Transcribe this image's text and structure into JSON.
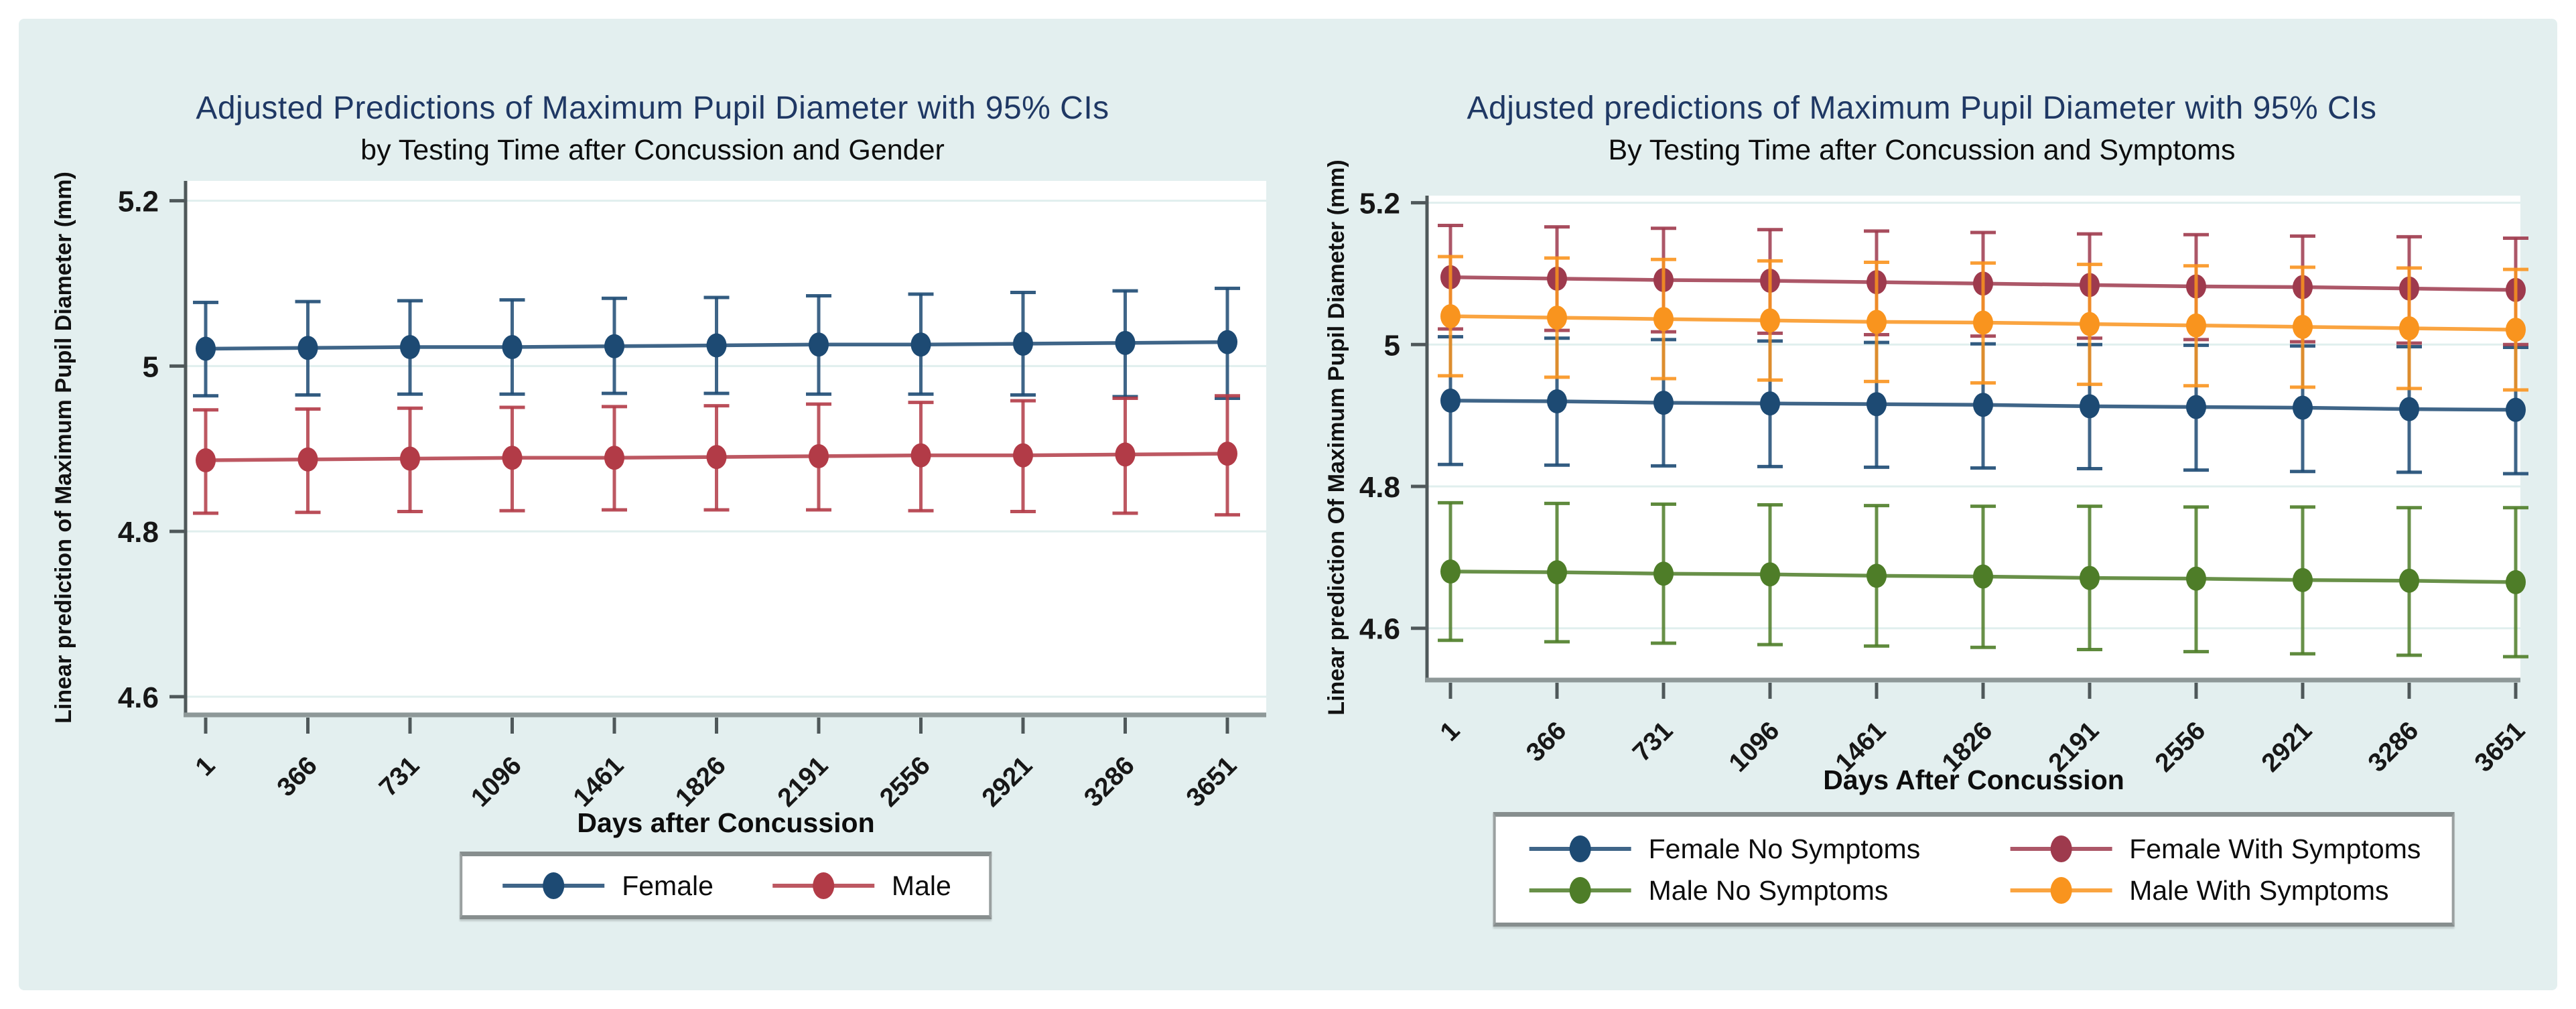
{
  "page": {
    "background": "#ffffff",
    "panel_background": "#e3efef",
    "title_color": "#1f3864",
    "plot_background": "#ffffff",
    "gridline_color": "#e0efee",
    "axis_color": "#4f585a",
    "baseline_color": "#8e9898"
  },
  "chart_data": [
    {
      "type": "line",
      "error_bars": "95% CI",
      "title": "Adjusted Predictions of Maximum Pupil Diameter with 95% CIs",
      "subtitle": "by Testing Time after Concussion and Gender",
      "ylabel": "Linear prediction of Maximum Pupil Diameter (mm)",
      "xlabel": "Days after Concussion",
      "x": [
        1,
        366,
        731,
        1096,
        1461,
        1826,
        2191,
        2556,
        2921,
        3286,
        3651
      ],
      "x_tick_labels": [
        "1",
        "366",
        "731",
        "1096",
        "1461",
        "1826",
        "2191",
        "2556",
        "2921",
        "3286",
        "3651"
      ],
      "y_ticks": [
        5.2,
        5.0,
        4.8,
        4.6
      ],
      "y_tick_labels": [
        "5.2",
        "5",
        "4.8",
        "4.6"
      ],
      "ylim": [
        4.578,
        5.224
      ],
      "grid": true,
      "legend_position": "bottom",
      "series": [
        {
          "name": "Female",
          "color": "#1d4a73",
          "values": [
            5.021,
            5.022,
            5.023,
            5.023,
            5.024,
            5.025,
            5.026,
            5.026,
            5.027,
            5.028,
            5.029
          ],
          "ci_upper": [
            5.077,
            5.078,
            5.079,
            5.08,
            5.082,
            5.083,
            5.085,
            5.087,
            5.089,
            5.091,
            5.094
          ],
          "ci_lower": [
            4.964,
            4.965,
            4.966,
            4.966,
            4.967,
            4.967,
            4.966,
            4.966,
            4.965,
            4.963,
            4.961
          ]
        },
        {
          "name": "Male",
          "color": "#b23b47",
          "values": [
            4.886,
            4.887,
            4.888,
            4.889,
            4.889,
            4.89,
            4.891,
            4.892,
            4.892,
            4.893,
            4.894
          ],
          "ci_upper": [
            4.947,
            4.948,
            4.949,
            4.95,
            4.951,
            4.952,
            4.954,
            4.956,
            4.958,
            4.961,
            4.964
          ],
          "ci_lower": [
            4.822,
            4.823,
            4.824,
            4.825,
            4.826,
            4.826,
            4.826,
            4.825,
            4.824,
            4.822,
            4.82
          ]
        }
      ]
    },
    {
      "type": "line",
      "error_bars": "95% CI",
      "title": "Adjusted predictions of Maximum Pupil Diameter with 95% CIs",
      "subtitle": "By Testing Time after Concussion and Symptoms",
      "ylabel": "Linear prediction Of Maximum Pupil Diameter (mm)",
      "xlabel": "Days After Concussion",
      "x": [
        1,
        366,
        731,
        1096,
        1461,
        1826,
        2191,
        2556,
        2921,
        3286,
        3651
      ],
      "x_tick_labels": [
        "1",
        "366",
        "731",
        "1096",
        "1461",
        "1826",
        "2191",
        "2556",
        "2921",
        "3286",
        "3651"
      ],
      "y_ticks": [
        5.2,
        5.0,
        4.8,
        4.6
      ],
      "y_tick_labels": [
        "5.2",
        "5",
        "4.8",
        "4.6"
      ],
      "ylim": [
        4.527,
        5.21
      ],
      "grid": true,
      "legend_position": "bottom",
      "series": [
        {
          "name": "Female No Symptoms",
          "color": "#1d4a73",
          "values": [
            4.921,
            4.92,
            4.918,
            4.917,
            4.916,
            4.915,
            4.913,
            4.912,
            4.911,
            4.909,
            4.908
          ],
          "ci_upper": [
            5.011,
            5.009,
            5.007,
            5.005,
            5.003,
            5.001,
            5.0,
            4.999,
            4.998,
            4.997,
            4.996
          ],
          "ci_lower": [
            4.831,
            4.83,
            4.829,
            4.828,
            4.827,
            4.826,
            4.825,
            4.823,
            4.821,
            4.82,
            4.818
          ]
        },
        {
          "name": "Female With Symptoms",
          "color": "#9e3a4d",
          "values": [
            5.095,
            5.093,
            5.091,
            5.09,
            5.088,
            5.086,
            5.084,
            5.082,
            5.081,
            5.079,
            5.077
          ],
          "ci_upper": [
            5.168,
            5.166,
            5.164,
            5.162,
            5.16,
            5.158,
            5.156,
            5.155,
            5.153,
            5.152,
            5.15
          ],
          "ci_lower": [
            5.022,
            5.02,
            5.018,
            5.016,
            5.014,
            5.012,
            5.009,
            5.007,
            5.004,
            5.002,
            5.0
          ]
        },
        {
          "name": "Male No Symptoms",
          "color": "#4e7d28",
          "values": [
            4.68,
            4.679,
            4.677,
            4.676,
            4.674,
            4.673,
            4.671,
            4.67,
            4.668,
            4.667,
            4.665
          ],
          "ci_upper": [
            4.777,
            4.776,
            4.775,
            4.774,
            4.773,
            4.772,
            4.772,
            4.771,
            4.771,
            4.77,
            4.77
          ],
          "ci_lower": [
            4.583,
            4.581,
            4.579,
            4.577,
            4.575,
            4.573,
            4.57,
            4.567,
            4.564,
            4.562,
            4.56
          ]
        },
        {
          "name": "Male With Symptoms",
          "color": "#f9941e",
          "values": [
            5.04,
            5.038,
            5.036,
            5.034,
            5.032,
            5.031,
            5.029,
            5.027,
            5.025,
            5.023,
            5.021
          ],
          "ci_upper": [
            5.124,
            5.122,
            5.12,
            5.118,
            5.116,
            5.115,
            5.113,
            5.111,
            5.109,
            5.108,
            5.106
          ],
          "ci_lower": [
            4.956,
            4.954,
            4.952,
            4.95,
            4.948,
            4.946,
            4.944,
            4.942,
            4.94,
            4.938,
            4.936
          ]
        }
      ]
    }
  ]
}
